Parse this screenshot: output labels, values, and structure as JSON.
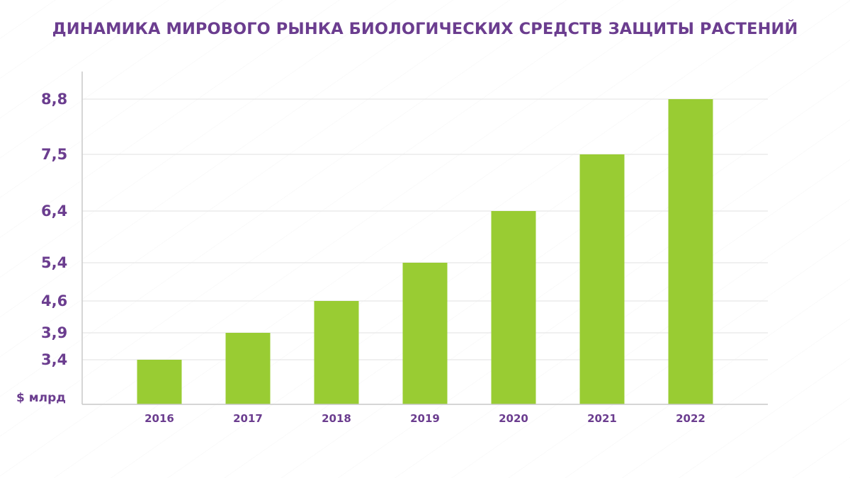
{
  "chart_data": {
    "type": "bar",
    "title": "ДИНАМИКА МИРОВОГО РЫНКА БИОЛОГИЧЕСКИХ СРЕДСТВ ЗАЩИТЫ РАСТЕНИЙ",
    "ylabel": "$ млрд",
    "xlabel": "",
    "categories": [
      "2016",
      "2017",
      "2018",
      "2019",
      "2020",
      "2021",
      "2022"
    ],
    "values": [
      3.4,
      3.9,
      4.6,
      5.4,
      6.4,
      7.5,
      8.8
    ],
    "y_tick_labels": [
      "3,4",
      "3,9",
      "4,6",
      "5,4",
      "6,4",
      "7,5",
      "8,8"
    ],
    "grid": true,
    "legend": "none",
    "bar_color": "#99cc33",
    "text_color": "#6b3d8f"
  }
}
